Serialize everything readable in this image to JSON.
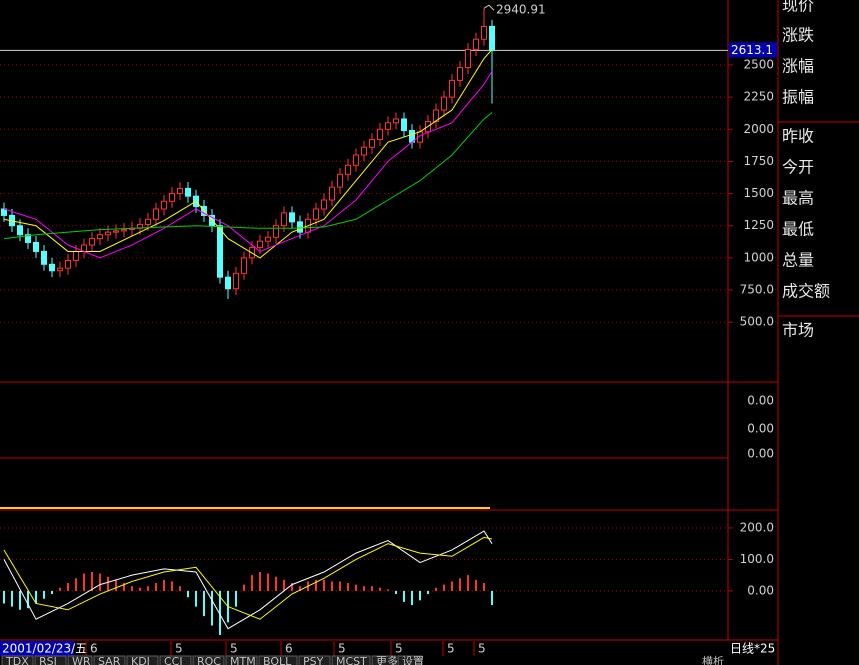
{
  "chart_data": [
    {
      "type": "candlestick",
      "open": [
        1380,
        1330,
        1250,
        1180,
        1120,
        1050,
        950,
        900,
        920,
        980,
        1050,
        1100,
        1150,
        1180,
        1200,
        1210,
        1220,
        1230,
        1260,
        1300,
        1380,
        1440,
        1500,
        1540,
        1480,
        1400,
        1330,
        1250,
        850,
        760,
        880,
        1000,
        1080,
        1130,
        1160,
        1250,
        1350,
        1280,
        1200,
        1300,
        1380,
        1450,
        1550,
        1650,
        1720,
        1800,
        1860,
        1920,
        2000,
        2050,
        2080,
        1990,
        1900,
        1980,
        2060,
        2150,
        2250,
        2380,
        2480,
        2620,
        2700,
        2800
      ],
      "high": [
        1430,
        1380,
        1300,
        1230,
        1170,
        1100,
        1000,
        970,
        1030,
        1100,
        1150,
        1200,
        1230,
        1250,
        1260,
        1270,
        1280,
        1310,
        1350,
        1430,
        1490,
        1550,
        1590,
        1590,
        1530,
        1450,
        1380,
        1300,
        900,
        930,
        1050,
        1130,
        1180,
        1210,
        1300,
        1400,
        1400,
        1330,
        1350,
        1430,
        1500,
        1600,
        1700,
        1770,
        1850,
        1910,
        1970,
        2050,
        2100,
        2130,
        2130,
        2040,
        2030,
        2110,
        2200,
        2300,
        2430,
        2530,
        2670,
        2750,
        2940.91,
        2850
      ],
      "low": [
        1280,
        1200,
        1130,
        1070,
        1000,
        900,
        850,
        850,
        870,
        930,
        1000,
        1050,
        1100,
        1130,
        1150,
        1160,
        1170,
        1180,
        1210,
        1250,
        1330,
        1390,
        1450,
        1430,
        1350,
        1280,
        1200,
        800,
        680,
        710,
        830,
        950,
        1030,
        1080,
        1110,
        1200,
        1230,
        1150,
        1150,
        1250,
        1330,
        1400,
        1500,
        1600,
        1670,
        1750,
        1810,
        1870,
        1950,
        2000,
        1940,
        1850,
        1850,
        1930,
        2010,
        2100,
        2200,
        2330,
        2430,
        2570,
        2650,
        2200
      ],
      "close": [
        1330,
        1250,
        1180,
        1120,
        1050,
        950,
        900,
        920,
        980,
        1050,
        1100,
        1150,
        1180,
        1200,
        1210,
        1220,
        1230,
        1260,
        1300,
        1380,
        1440,
        1500,
        1540,
        1480,
        1400,
        1330,
        1250,
        850,
        760,
        880,
        1000,
        1080,
        1130,
        1160,
        1250,
        1350,
        1280,
        1200,
        1300,
        1380,
        1450,
        1550,
        1650,
        1720,
        1800,
        1860,
        1920,
        2000,
        2050,
        2080,
        1990,
        1900,
        1980,
        2060,
        2150,
        2250,
        2380,
        2480,
        2620,
        2700,
        2800,
        2613
      ],
      "up_color": "#ff3232",
      "down_color": "#54ffff",
      "last_price": 2613.1,
      "ylim": [
        35,
        3005
      ],
      "yticks": [
        {
          "value": 500,
          "label": "500.0"
        },
        {
          "value": 750,
          "label": "750.0"
        },
        1000,
        1250,
        1500,
        1750,
        2000,
        2250,
        2500
      ],
      "grid": true,
      "lines": [
        {
          "color": "#ffff00",
          "x": [
            0,
            4,
            8,
            12,
            16,
            20,
            24,
            28,
            32,
            36,
            40,
            44,
            48,
            52,
            56,
            60,
            61
          ],
          "values": [
            1300,
            1250,
            1050,
            1050,
            1170,
            1290,
            1440,
            1150,
            1000,
            1200,
            1300,
            1600,
            1900,
            1980,
            2150,
            2550,
            2620
          ]
        },
        {
          "color": "#ff00ff",
          "x": [
            0,
            4,
            8,
            12,
            16,
            20,
            24,
            28,
            32,
            36,
            40,
            44,
            48,
            52,
            56,
            60,
            61
          ],
          "values": [
            1380,
            1300,
            1100,
            1000,
            1100,
            1230,
            1380,
            1250,
            1050,
            1150,
            1250,
            1450,
            1750,
            1950,
            2050,
            2350,
            2450
          ]
        },
        {
          "color": "#00d000",
          "x": [
            0,
            4,
            8,
            12,
            16,
            20,
            24,
            28,
            32,
            36,
            40,
            44,
            48,
            52,
            56,
            60,
            61
          ],
          "values": [
            1150,
            1180,
            1200,
            1220,
            1230,
            1240,
            1250,
            1240,
            1230,
            1230,
            1240,
            1300,
            1450,
            1600,
            1800,
            2080,
            2130
          ]
        }
      ]
    },
    {
      "type": "bar",
      "values": [
        -40,
        -50,
        -60,
        -55,
        -40,
        -25,
        -10,
        10,
        25,
        40,
        55,
        60,
        55,
        45,
        35,
        25,
        15,
        10,
        15,
        25,
        35,
        30,
        15,
        -20,
        -50,
        -80,
        -110,
        -140,
        -100,
        -50,
        20,
        50,
        60,
        55,
        45,
        35,
        25,
        15,
        30,
        35,
        35,
        30,
        30,
        25,
        20,
        15,
        15,
        10,
        5,
        -10,
        -35,
        -45,
        -30,
        -10,
        10,
        20,
        30,
        40,
        50,
        35,
        25,
        -45
      ],
      "pos_color": "#ff3232",
      "neg_color": "#54ffff",
      "ylim": [
        -156,
        257
      ],
      "yticks": [
        {
          "value": 200,
          "label": "200.0"
        },
        {
          "value": 100,
          "label": "100.0"
        },
        {
          "value": 0,
          "label": "0.00"
        }
      ],
      "grid": true,
      "lines": [
        {
          "color": "#ffffff",
          "x": [
            0,
            4,
            8,
            12,
            16,
            20,
            24,
            28,
            32,
            36,
            40,
            44,
            48,
            52,
            56,
            60,
            61
          ],
          "values": [
            100,
            -90,
            -40,
            20,
            50,
            70,
            60,
            -120,
            -60,
            20,
            60,
            120,
            160,
            90,
            130,
            190,
            150
          ]
        },
        {
          "color": "#ffff00",
          "x": [
            0,
            4,
            8,
            12,
            16,
            20,
            24,
            28,
            32,
            36,
            40,
            44,
            48,
            52,
            56,
            60,
            61
          ],
          "values": [
            130,
            -40,
            -60,
            -10,
            30,
            60,
            75,
            -50,
            -90,
            -10,
            40,
            100,
            150,
            120,
            110,
            170,
            165
          ]
        }
      ]
    }
  ],
  "indicator_panel": {
    "labels": [
      "0.00",
      "0.00",
      "0.00"
    ]
  },
  "x_axis": {
    "date": "2001/02/23/五",
    "month_ticks": [
      "6",
      "5",
      "5",
      "6",
      "5",
      "5",
      "5",
      "5"
    ]
  },
  "period": "日线*25",
  "quote_panel": {
    "labels": [
      "现价",
      "涨跌",
      "涨幅",
      "振幅",
      "昨收",
      "今开",
      "最高",
      "最低",
      "总量",
      "成交额",
      "市场"
    ]
  },
  "tabs": [
    "TDX",
    "RSI",
    "WR",
    "SAR",
    "KDJ",
    "CCI",
    "ROC",
    "MTM",
    "BOLL",
    "PSY",
    "MCST",
    "更多",
    "设置"
  ],
  "side_tab": "横析"
}
